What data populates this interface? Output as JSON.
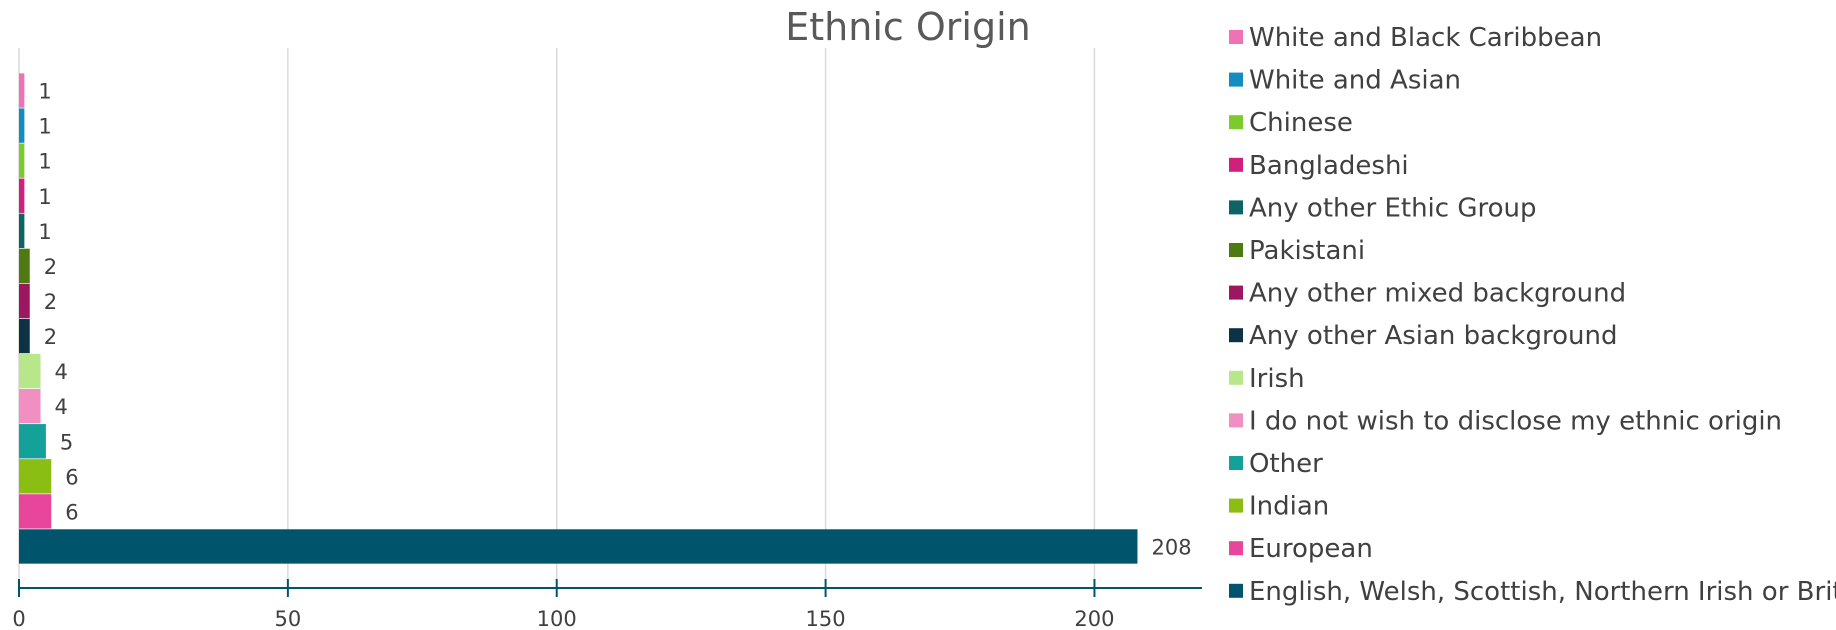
{
  "chart_data": {
    "type": "bar",
    "orientation": "horizontal",
    "title": "Ethnic Origin",
    "xlabel": "",
    "ylabel": "",
    "xlim": [
      0,
      220
    ],
    "x_ticks": [
      0,
      50,
      100,
      150,
      200
    ],
    "grid": true,
    "legend_position": "right",
    "categories": [
      "White and Black Caribbean",
      "White and Asian",
      "Chinese",
      "Bangladeshi",
      "Any other Ethic Group",
      "Pakistani",
      "Any other mixed background",
      "Any other Asian background",
      "Irish",
      "I do not wish to disclose my ethnic origin",
      "Other",
      "Indian",
      "European",
      "English, Welsh, Scottish, Northern Irish or British"
    ],
    "values": [
      1,
      1,
      1,
      1,
      1,
      2,
      2,
      2,
      4,
      4,
      5,
      6,
      6,
      208
    ],
    "colors": [
      "#EE72B4",
      "#138CBF",
      "#7BCB2E",
      "#D0207E",
      "#0E6464",
      "#4E7A13",
      "#9C1660",
      "#0C3344",
      "#B8E68A",
      "#F18EC2",
      "#13A19A",
      "#8BBE12",
      "#E8469C",
      "#00546C"
    ],
    "axis_color": "#00546C",
    "grid_color": "#D9D9D9"
  }
}
